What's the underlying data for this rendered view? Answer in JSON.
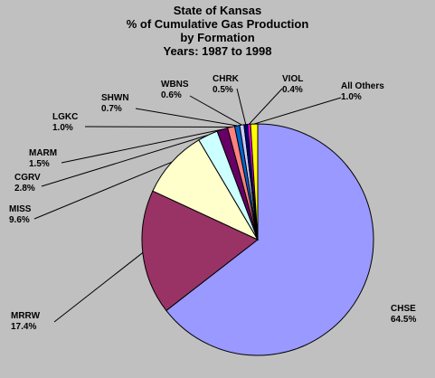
{
  "chart_data": {
    "type": "pie",
    "title_lines": [
      "State of Kansas",
      "% of Cumulative Gas Production",
      "by Formation",
      "Years: 1987 to 1998"
    ],
    "slices": [
      {
        "name": "CHSE",
        "value": 64.5,
        "label": "64.5%",
        "color": "#9999ff"
      },
      {
        "name": "MRRW",
        "value": 17.4,
        "label": "17.4%",
        "color": "#993366"
      },
      {
        "name": "MISS",
        "value": 9.6,
        "label": "9.6%",
        "color": "#ffffcc"
      },
      {
        "name": "CGRV",
        "value": 2.8,
        "label": "2.8%",
        "color": "#ccffff"
      },
      {
        "name": "MARM",
        "value": 1.5,
        "label": "1.5%",
        "color": "#660066"
      },
      {
        "name": "LGKC",
        "value": 1.0,
        "label": "1.0%",
        "color": "#ff8080"
      },
      {
        "name": "SHWN",
        "value": 0.7,
        "label": "0.7%",
        "color": "#0066cc"
      },
      {
        "name": "WBNS",
        "value": 0.6,
        "label": "0.6%",
        "color": "#ccccff"
      },
      {
        "name": "CHRK",
        "value": 0.5,
        "label": "0.5%",
        "color": "#000080"
      },
      {
        "name": "VIOL",
        "value": 0.4,
        "label": "0.4%",
        "color": "#ff00ff"
      },
      {
        "name": "All Others",
        "value": 1.0,
        "label": "1.0%",
        "color": "#ffff00"
      }
    ],
    "legend": "none",
    "background": "#c0c0c0"
  }
}
